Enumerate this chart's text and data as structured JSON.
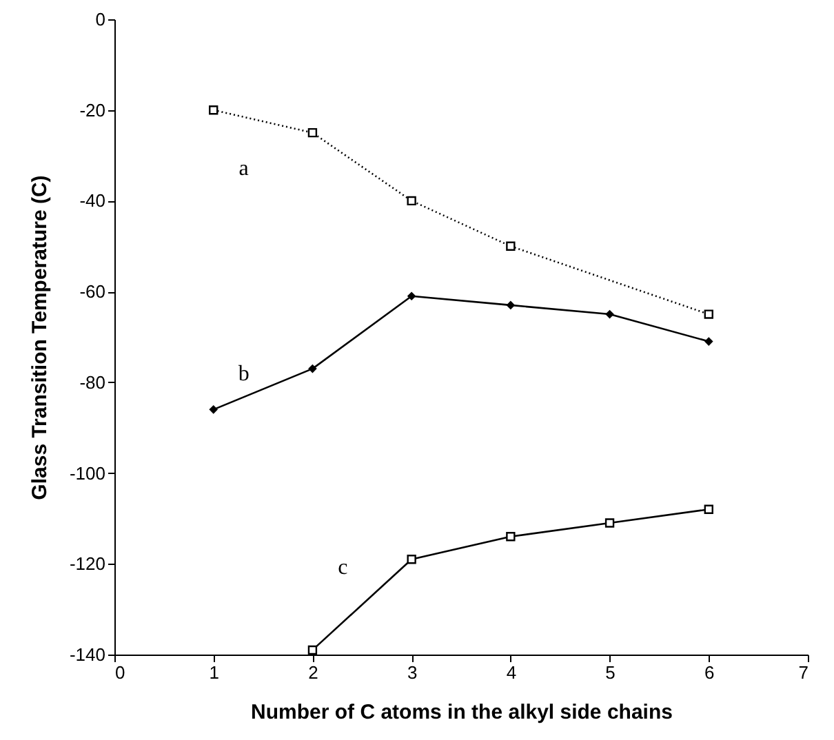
{
  "chart_data": {
    "type": "line",
    "xlabel": "Number of C atoms in the alkyl side chains",
    "ylabel": "Glass Transition Temperature (C)",
    "x": [
      1,
      2,
      3,
      4,
      5,
      6
    ],
    "series": [
      {
        "color": "#000000",
        "marker": "square",
        "line_style": "dotted",
        "values": [
          -20,
          -25,
          -40,
          -50,
          null,
          -65
        ]
      },
      {
        "color": "#000000",
        "marker": "diamond",
        "line_style": "solid",
        "values": [
          -86,
          -77,
          -61,
          -63,
          -65,
          -71
        ]
      },
      {
        "color": "#000000",
        "marker": "square",
        "line_style": "solid",
        "values": [
          null,
          -139,
          -119,
          -114,
          -111,
          -108
        ]
      }
    ],
    "annotations": [
      "a",
      "b",
      "c"
    ],
    "xlim": [
      0,
      7
    ],
    "xticks": [
      0,
      1,
      2,
      3,
      4,
      5,
      6,
      7
    ],
    "ylim": [
      -140,
      0
    ],
    "yticks": [
      -140,
      -120,
      -100,
      -80,
      -60,
      -40,
      -20,
      0
    ],
    "grid": false
  }
}
